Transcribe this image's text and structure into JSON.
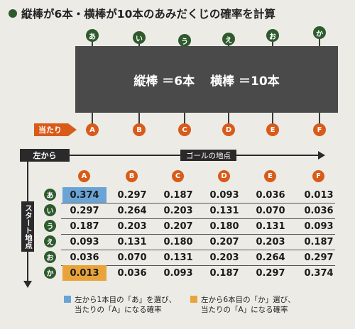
{
  "title": "縦棒が6本・横棒が10本のあみだくじの確率を計算",
  "colors": {
    "green": "#2e5a2e",
    "orange": "#d85b1a",
    "blue_highlight": "#6aa3d5",
    "orange_highlight": "#e8a43a",
    "panel": "#4a4a4a"
  },
  "top_labels": [
    "あ",
    "い",
    "う",
    "え",
    "お",
    "か"
  ],
  "panel": {
    "vertical": "縦棒 ＝6本",
    "horizontal": "横棒 ＝10本"
  },
  "atari_label": "当たり",
  "goal_labels": [
    "A",
    "B",
    "C",
    "D",
    "E",
    "F"
  ],
  "table": {
    "left_header": "左から",
    "goal_header": "ゴールの地点",
    "start_header": "スタート地点",
    "columns": [
      "A",
      "B",
      "C",
      "D",
      "E",
      "F"
    ],
    "rows": [
      {
        "label": "あ",
        "values": [
          "0.374",
          "0.297",
          "0.187",
          "0.093",
          "0.036",
          "0.013"
        ]
      },
      {
        "label": "い",
        "values": [
          "0.297",
          "0.264",
          "0.203",
          "0.131",
          "0.070",
          "0.036"
        ]
      },
      {
        "label": "う",
        "values": [
          "0.187",
          "0.203",
          "0.207",
          "0.180",
          "0.131",
          "0.093"
        ]
      },
      {
        "label": "え",
        "values": [
          "0.093",
          "0.131",
          "0.180",
          "0.207",
          "0.203",
          "0.187"
        ]
      },
      {
        "label": "お",
        "values": [
          "0.036",
          "0.070",
          "0.131",
          "0.203",
          "0.264",
          "0.297"
        ]
      },
      {
        "label": "か",
        "values": [
          "0.013",
          "0.036",
          "0.093",
          "0.187",
          "0.297",
          "0.374"
        ]
      }
    ]
  },
  "legend": [
    {
      "line1": "左から1本目の「あ」を選び、",
      "line2": "当たりの「A」になる確率"
    },
    {
      "line1": "左から6本目の「か」選び、",
      "line2": "当たりの「A」になる確率"
    }
  ]
}
